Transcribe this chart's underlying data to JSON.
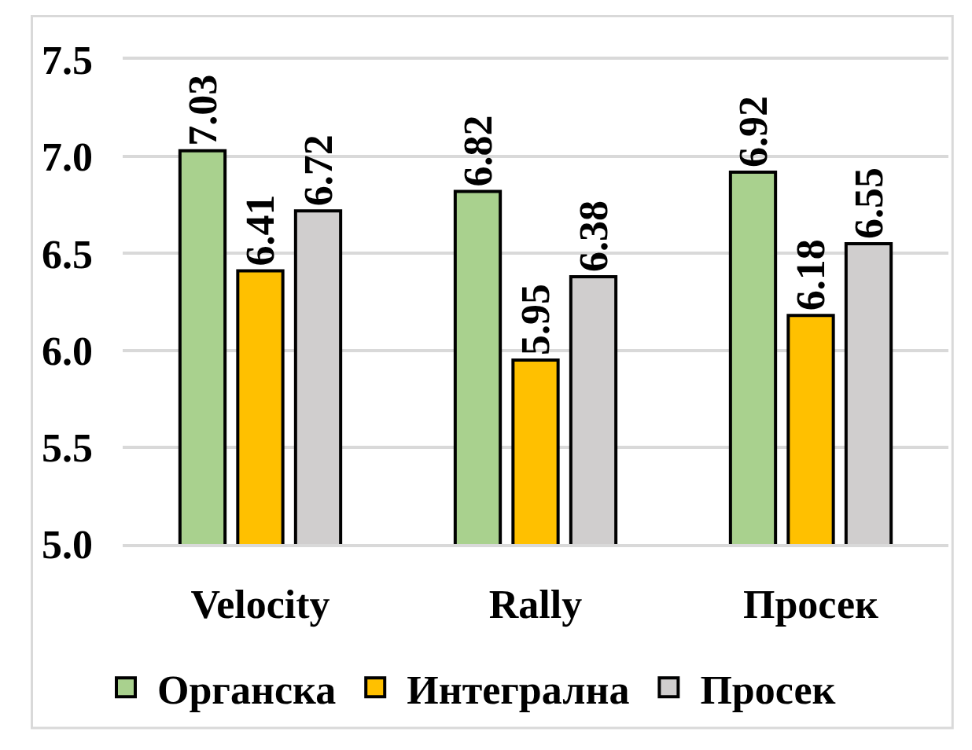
{
  "chart_data": {
    "type": "bar",
    "categories": [
      "Velocity",
      "Rally",
      "Просек"
    ],
    "series": [
      {
        "name": "Органска",
        "color": "#a9d18e",
        "values": [
          7.03,
          6.82,
          6.92
        ]
      },
      {
        "name": "Интегрална",
        "color": "#ffc000",
        "values": [
          6.41,
          5.95,
          6.18
        ]
      },
      {
        "name": "Просек",
        "color": "#d0cece",
        "values": [
          6.72,
          6.38,
          6.55
        ]
      }
    ],
    "ylim": [
      5.0,
      7.5
    ],
    "yticks": [
      {
        "value": 5.0,
        "label": "5.0"
      },
      5.5,
      {
        "value": 6.0,
        "label": "6.0"
      },
      6.5,
      {
        "value": 7.0,
        "label": "7.0"
      },
      7.5
    ],
    "grid": "y",
    "legend": "bottom",
    "data_labels": true
  }
}
